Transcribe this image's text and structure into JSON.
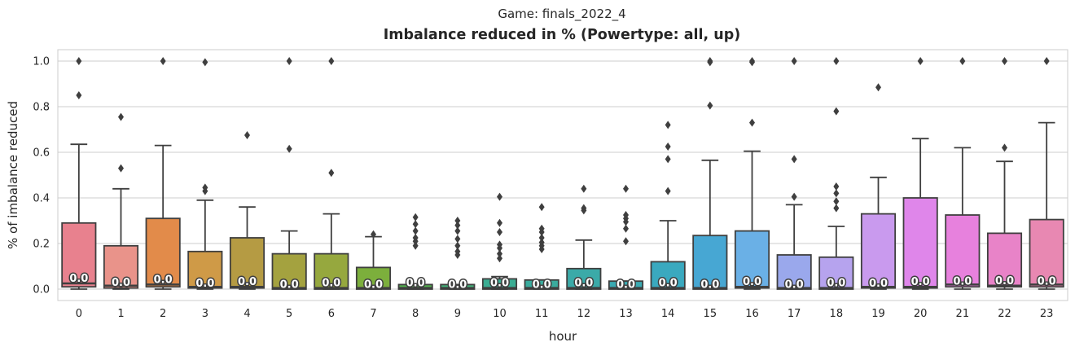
{
  "chart_data": {
    "type": "box",
    "suptitle": "Game: finals_2022_4",
    "title": "Imbalance reduced in % (Powertype: all, up)",
    "xlabel": "hour",
    "ylabel": "% of imbalance reduced",
    "ylim": [
      -0.05,
      1.05
    ],
    "yticks": [
      "0.0",
      "0.2",
      "0.4",
      "0.6",
      "0.8",
      "1.0"
    ],
    "grid": true,
    "categories": [
      "0",
      "1",
      "2",
      "3",
      "4",
      "5",
      "6",
      "7",
      "8",
      "9",
      "10",
      "11",
      "12",
      "13",
      "14",
      "15",
      "16",
      "17",
      "18",
      "19",
      "20",
      "21",
      "22",
      "23"
    ],
    "median_labels": [
      "0.0",
      "0.0",
      "0.0",
      "0.0",
      "0.0",
      "0.0",
      "0.0",
      "0.0",
      "0.0",
      "0.0",
      "0.0",
      "0.0",
      "0.0",
      "0.0",
      "0.0",
      "0.0",
      "0.0",
      "0.0",
      "0.0",
      "0.0",
      "0.0",
      "0.0",
      "0.0",
      "0.0"
    ],
    "boxes": [
      {
        "q1": 0.01,
        "median": 0.025,
        "q3": 0.29,
        "whisker_low": 0.0,
        "whisker_high": 0.635,
        "color": "#e8818e",
        "outliers": [
          0.85,
          1.0
        ]
      },
      {
        "q1": 0.005,
        "median": 0.015,
        "q3": 0.19,
        "whisker_low": 0.0,
        "whisker_high": 0.44,
        "color": "#e9938a",
        "outliers": [
          0.53,
          0.755
        ]
      },
      {
        "q1": 0.01,
        "median": 0.02,
        "q3": 0.31,
        "whisker_low": 0.0,
        "whisker_high": 0.63,
        "color": "#e28b4a",
        "outliers": [
          1.0
        ]
      },
      {
        "q1": 0.005,
        "median": 0.01,
        "q3": 0.165,
        "whisker_low": 0.0,
        "whisker_high": 0.39,
        "color": "#cf9a47",
        "outliers": [
          0.43,
          0.445,
          0.995
        ]
      },
      {
        "q1": 0.005,
        "median": 0.01,
        "q3": 0.225,
        "whisker_low": 0.0,
        "whisker_high": 0.36,
        "color": "#b59b43",
        "outliers": [
          0.675
        ]
      },
      {
        "q1": 0.0,
        "median": 0.005,
        "q3": 0.155,
        "whisker_low": 0.0,
        "whisker_high": 0.255,
        "color": "#a4a23f",
        "outliers": [
          0.615,
          1.0
        ]
      },
      {
        "q1": 0.0,
        "median": 0.005,
        "q3": 0.155,
        "whisker_low": 0.0,
        "whisker_high": 0.33,
        "color": "#96a83e",
        "outliers": [
          0.51,
          1.0
        ]
      },
      {
        "q1": 0.0,
        "median": 0.005,
        "q3": 0.095,
        "whisker_low": 0.0,
        "whisker_high": 0.23,
        "color": "#7caf3c",
        "outliers": [
          0.24
        ]
      },
      {
        "q1": 0.0,
        "median": 0.005,
        "q3": 0.02,
        "whisker_low": 0.0,
        "whisker_high": 0.02,
        "color": "#52b04e",
        "outliers": [
          0.19,
          0.21,
          0.225,
          0.255,
          0.285,
          0.315
        ]
      },
      {
        "q1": 0.0,
        "median": 0.005,
        "q3": 0.02,
        "whisker_low": 0.0,
        "whisker_high": 0.02,
        "color": "#44b27a",
        "outliers": [
          0.15,
          0.165,
          0.19,
          0.22,
          0.255,
          0.28,
          0.3
        ]
      },
      {
        "q1": 0.0,
        "median": 0.005,
        "q3": 0.045,
        "whisker_low": 0.0,
        "whisker_high": 0.055,
        "color": "#3aad93",
        "outliers": [
          0.135,
          0.155,
          0.18,
          0.195,
          0.25,
          0.29,
          0.405
        ]
      },
      {
        "q1": 0.0,
        "median": 0.005,
        "q3": 0.04,
        "whisker_low": 0.0,
        "whisker_high": 0.04,
        "color": "#3aac9e",
        "outliers": [
          0.175,
          0.19,
          0.205,
          0.225,
          0.25,
          0.265,
          0.36
        ]
      },
      {
        "q1": 0.0,
        "median": 0.005,
        "q3": 0.09,
        "whisker_low": 0.0,
        "whisker_high": 0.215,
        "color": "#3baaa8",
        "outliers": [
          0.345,
          0.355,
          0.44
        ]
      },
      {
        "q1": 0.0,
        "median": 0.005,
        "q3": 0.035,
        "whisker_low": 0.0,
        "whisker_high": 0.035,
        "color": "#3aaab2",
        "outliers": [
          0.21,
          0.265,
          0.295,
          0.31,
          0.325,
          0.44
        ]
      },
      {
        "q1": 0.0,
        "median": 0.005,
        "q3": 0.12,
        "whisker_low": 0.0,
        "whisker_high": 0.3,
        "color": "#3aa9bf",
        "outliers": [
          0.43,
          0.57,
          0.625,
          0.72
        ]
      },
      {
        "q1": 0.0,
        "median": 0.005,
        "q3": 0.235,
        "whisker_low": 0.0,
        "whisker_high": 0.565,
        "color": "#47a7d3",
        "outliers": [
          0.805,
          0.995,
          1.0
        ]
      },
      {
        "q1": 0.005,
        "median": 0.01,
        "q3": 0.255,
        "whisker_low": 0.0,
        "whisker_high": 0.605,
        "color": "#6ab0e6",
        "outliers": [
          0.73,
          0.995,
          1.0
        ]
      },
      {
        "q1": 0.0,
        "median": 0.005,
        "q3": 0.15,
        "whisker_low": 0.0,
        "whisker_high": 0.37,
        "color": "#9aa8ec",
        "outliers": [
          0.405,
          0.57,
          1.0
        ]
      },
      {
        "q1": 0.0,
        "median": 0.005,
        "q3": 0.14,
        "whisker_low": 0.0,
        "whisker_high": 0.275,
        "color": "#b6a3ee",
        "outliers": [
          0.355,
          0.385,
          0.42,
          0.45,
          0.78,
          1.0
        ]
      },
      {
        "q1": 0.005,
        "median": 0.01,
        "q3": 0.33,
        "whisker_low": 0.0,
        "whisker_high": 0.49,
        "color": "#c99aee",
        "outliers": [
          0.885
        ]
      },
      {
        "q1": 0.005,
        "median": 0.01,
        "q3": 0.4,
        "whisker_low": 0.0,
        "whisker_high": 0.66,
        "color": "#df86ea",
        "outliers": [
          1.0
        ]
      },
      {
        "q1": 0.01,
        "median": 0.02,
        "q3": 0.325,
        "whisker_low": 0.0,
        "whisker_high": 0.62,
        "color": "#e781dd",
        "outliers": [
          1.0
        ]
      },
      {
        "q1": 0.01,
        "median": 0.015,
        "q3": 0.245,
        "whisker_low": 0.0,
        "whisker_high": 0.56,
        "color": "#e883c8",
        "outliers": [
          0.62,
          1.0
        ]
      },
      {
        "q1": 0.01,
        "median": 0.02,
        "q3": 0.305,
        "whisker_low": 0.0,
        "whisker_high": 0.73,
        "color": "#e888b2",
        "outliers": [
          1.0
        ]
      }
    ]
  }
}
